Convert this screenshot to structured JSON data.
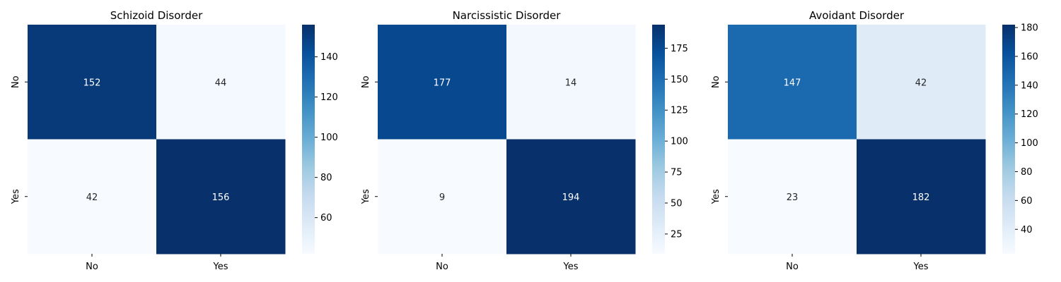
{
  "chart_data": [
    {
      "type": "heatmap",
      "title": "Schizoid Disorder",
      "x_labels": [
        "No",
        "Yes"
      ],
      "y_labels": [
        "No",
        "Yes"
      ],
      "values": [
        [
          152,
          44
        ],
        [
          42,
          156
        ]
      ],
      "colorbar": {
        "min": 42,
        "max": 156,
        "ticks": [
          60,
          80,
          100,
          120,
          140
        ]
      },
      "colormap": "Blues"
    },
    {
      "type": "heatmap",
      "title": "Narcissistic Disorder",
      "x_labels": [
        "No",
        "Yes"
      ],
      "y_labels": [
        "No",
        "Yes"
      ],
      "values": [
        [
          177,
          14
        ],
        [
          9,
          194
        ]
      ],
      "colorbar": {
        "min": 9,
        "max": 194,
        "ticks": [
          25,
          50,
          75,
          100,
          125,
          150,
          175
        ]
      },
      "colormap": "Blues"
    },
    {
      "type": "heatmap",
      "title": "Avoidant Disorder",
      "x_labels": [
        "No",
        "Yes"
      ],
      "y_labels": [
        "No",
        "Yes"
      ],
      "values": [
        [
          147,
          42
        ],
        [
          23,
          182
        ]
      ],
      "colorbar": {
        "min": 23,
        "max": 182,
        "ticks": [
          40,
          60,
          80,
          100,
          120,
          140,
          160,
          180
        ]
      },
      "colormap": "Blues"
    }
  ]
}
